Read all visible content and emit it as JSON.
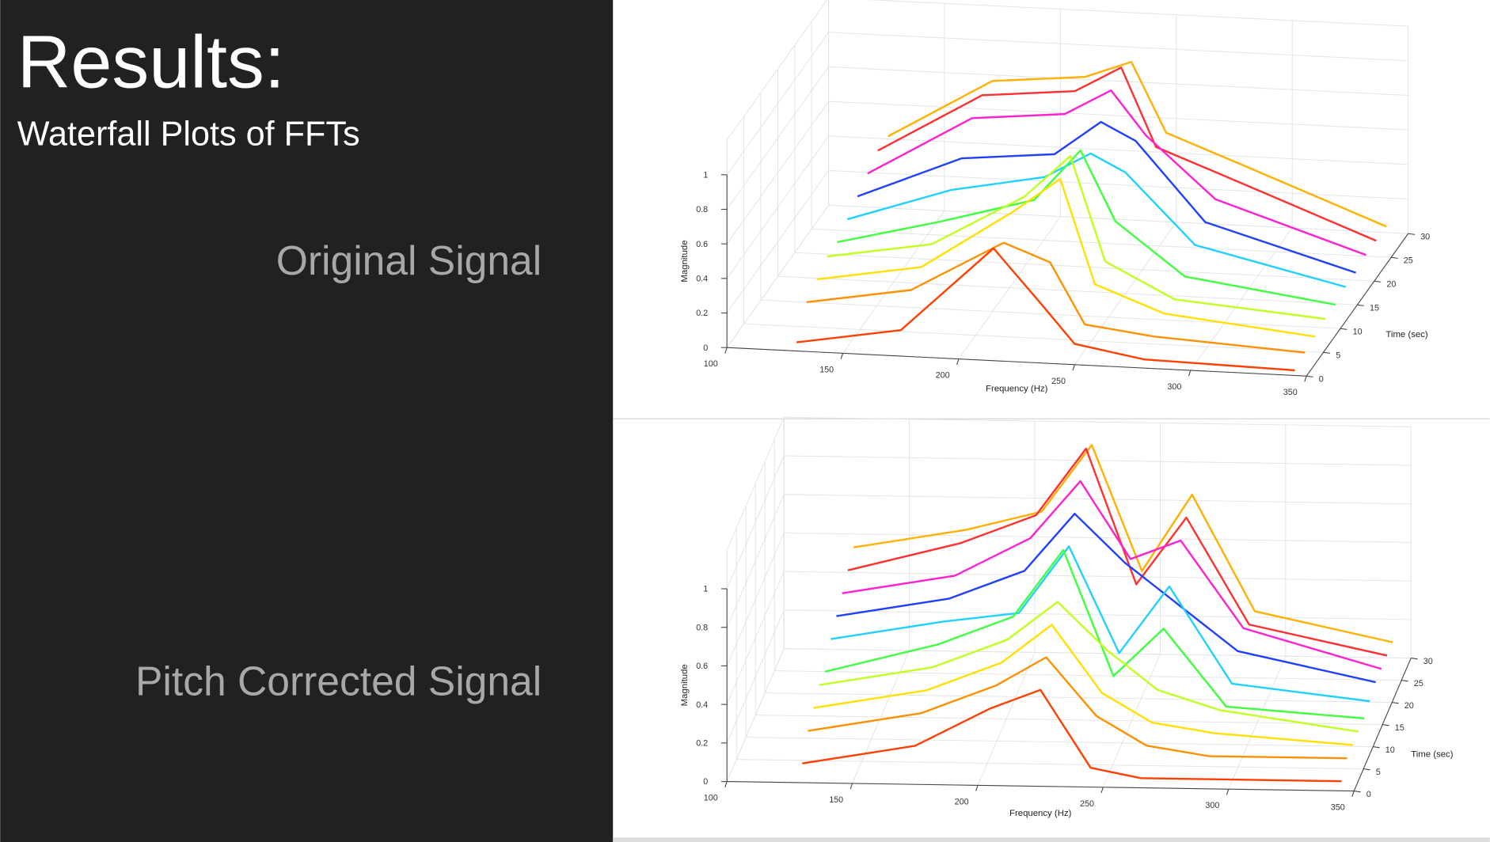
{
  "slide": {
    "title": "Results:",
    "subtitle": "Waterfall Plots of FFTs",
    "labels": [
      "Original Signal",
      "Pitch Corrected Signal"
    ]
  },
  "chart_data": [
    {
      "type": "waterfall3d",
      "xlabel": "Frequency (Hz)",
      "ylabel": "Time (sec)",
      "zlabel": "Magnitude",
      "xlim": [
        100,
        350
      ],
      "xticks": [
        100,
        150,
        200,
        250,
        300,
        350
      ],
      "ylim": [
        0,
        30
      ],
      "yticks": [
        0,
        5,
        10,
        15,
        20,
        25,
        30
      ],
      "zlim": [
        0,
        1.2
      ],
      "zticks": [
        0,
        0.2,
        0.4,
        0.6,
        0.8,
        1
      ],
      "grid": true,
      "x": [
        130,
        175,
        215,
        235,
        250,
        280,
        345
      ],
      "series": [
        {
          "time": 27,
          "color": "#ffb000",
          "values": [
            0.5,
            0.85,
            0.9,
            1.0,
            0.6,
            0.45,
            0.12
          ]
        },
        {
          "time": 24,
          "color": "#ff3030",
          "values": [
            0.5,
            0.85,
            0.9,
            1.05,
            0.6,
            0.45,
            0.12
          ]
        },
        {
          "time": 21,
          "color": "#ff20d0",
          "values": [
            0.45,
            0.8,
            0.85,
            1.0,
            0.75,
            0.4,
            0.12
          ]
        },
        {
          "time": 18,
          "color": "#2040ff",
          "values": [
            0.4,
            0.65,
            0.7,
            0.9,
            0.8,
            0.35,
            0.1
          ]
        },
        {
          "time": 15,
          "color": "#20d0ff",
          "values": [
            0.35,
            0.55,
            0.65,
            0.8,
            0.7,
            0.3,
            0.1
          ]
        },
        {
          "time": 12,
          "color": "#40ff40",
          "values": [
            0.3,
            0.45,
            0.6,
            0.9,
            0.5,
            0.2,
            0.08
          ]
        },
        {
          "time": 9,
          "color": "#c0ff20",
          "values": [
            0.3,
            0.4,
            0.7,
            0.95,
            0.35,
            0.15,
            0.08
          ]
        },
        {
          "time": 6,
          "color": "#ffe000",
          "values": [
            0.25,
            0.35,
            0.7,
            0.9,
            0.3,
            0.15,
            0.06
          ]
        },
        {
          "time": 3,
          "color": "#ff9000",
          "values": [
            0.2,
            0.3,
            0.6,
            0.5,
            0.15,
            0.1,
            0.05
          ]
        },
        {
          "time": 0,
          "color": "#ff4000",
          "values": [
            0.05,
            0.15,
            0.65,
            0.35,
            0.12,
            0.05,
            0.03
          ]
        }
      ]
    },
    {
      "type": "waterfall3d",
      "xlabel": "Frequency (Hz)",
      "ylabel": "Time (sec)",
      "zlabel": "Magnitude",
      "xlim": [
        100,
        350
      ],
      "xticks": [
        100,
        150,
        200,
        250,
        300,
        350
      ],
      "ylim": [
        0,
        30
      ],
      "yticks": [
        0,
        5,
        10,
        15,
        20,
        25,
        30
      ],
      "zlim": [
        0,
        1.2
      ],
      "zticks": [
        0,
        0.2,
        0.4,
        0.6,
        0.8,
        1
      ],
      "grid": true,
      "x": [
        130,
        175,
        205,
        225,
        245,
        265,
        290,
        345
      ],
      "series": [
        {
          "time": 27,
          "color": "#ffb000",
          "values": [
            0.6,
            0.7,
            0.8,
            1.15,
            0.5,
            0.9,
            0.3,
            0.15
          ]
        },
        {
          "time": 24,
          "color": "#ff3030",
          "values": [
            0.55,
            0.7,
            0.85,
            1.2,
            0.5,
            0.85,
            0.3,
            0.15
          ]
        },
        {
          "time": 21,
          "color": "#ff20d0",
          "values": [
            0.5,
            0.6,
            0.8,
            1.1,
            0.7,
            0.8,
            0.35,
            0.15
          ]
        },
        {
          "time": 18,
          "color": "#2040ff",
          "values": [
            0.45,
            0.55,
            0.7,
            1.0,
            0.75,
            0.55,
            0.3,
            0.15
          ]
        },
        {
          "time": 15,
          "color": "#20d0ff",
          "values": [
            0.4,
            0.5,
            0.55,
            0.9,
            0.35,
            0.7,
            0.2,
            0.12
          ]
        },
        {
          "time": 12,
          "color": "#40ff40",
          "values": [
            0.3,
            0.45,
            0.6,
            0.95,
            0.3,
            0.55,
            0.15,
            0.1
          ]
        },
        {
          "time": 9,
          "color": "#c0ff20",
          "values": [
            0.3,
            0.4,
            0.55,
            0.75,
            0.5,
            0.3,
            0.2,
            0.1
          ]
        },
        {
          "time": 6,
          "color": "#ffe000",
          "values": [
            0.25,
            0.35,
            0.5,
            0.7,
            0.35,
            0.2,
            0.15,
            0.1
          ]
        },
        {
          "time": 3,
          "color": "#ff9000",
          "values": [
            0.2,
            0.3,
            0.45,
            0.6,
            0.3,
            0.15,
            0.1,
            0.1
          ]
        },
        {
          "time": 0,
          "color": "#ff4000",
          "values": [
            0.1,
            0.2,
            0.4,
            0.5,
            0.1,
            0.05,
            0.05,
            0.05
          ]
        }
      ]
    }
  ]
}
